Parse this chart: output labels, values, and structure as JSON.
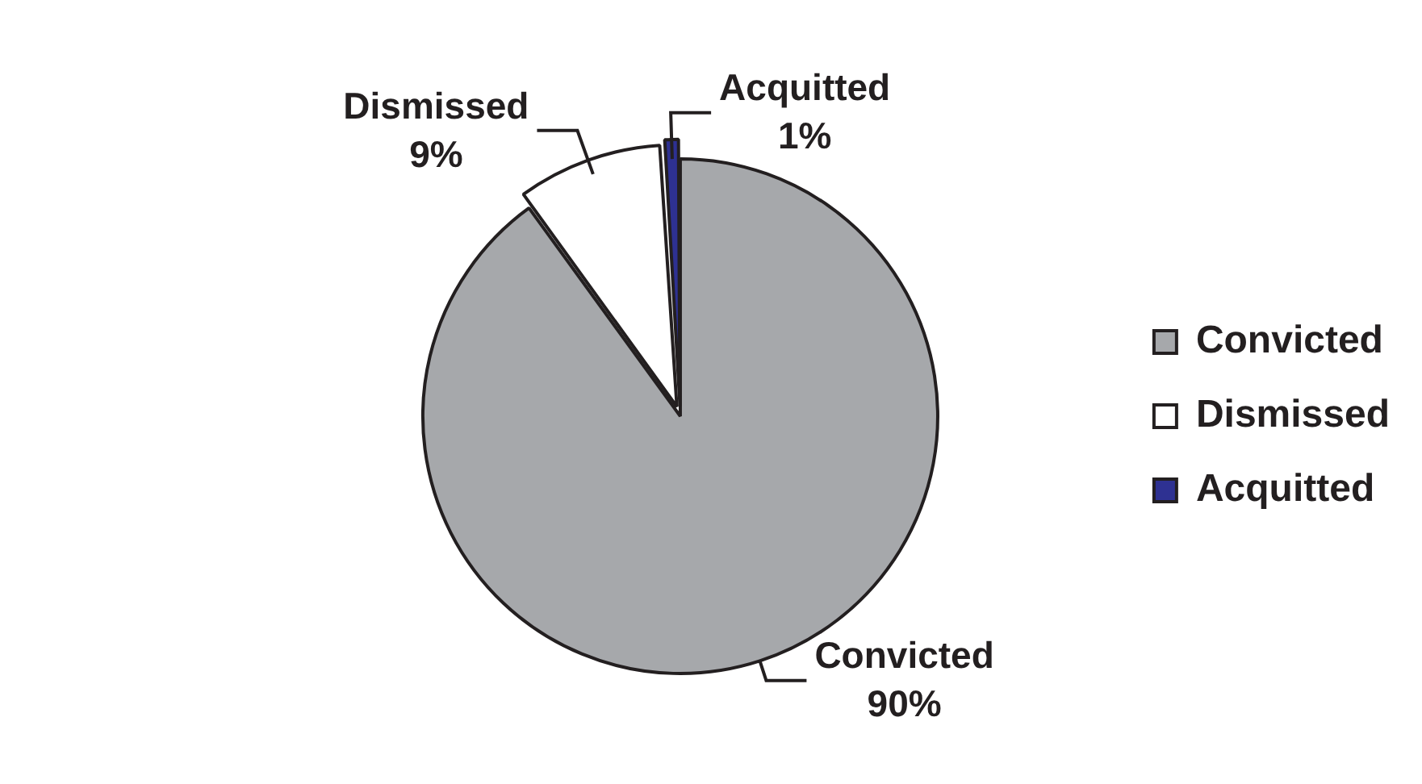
{
  "chart_data": {
    "type": "pie",
    "categories": [
      "Convicted",
      "Dismissed",
      "Acquitted"
    ],
    "values": [
      90,
      9,
      1
    ],
    "colors": [
      "#a6a8ab",
      "#ffffff",
      "#2e3192"
    ],
    "value_labels": [
      "90%",
      "9%",
      "1%"
    ],
    "legend": "right"
  }
}
